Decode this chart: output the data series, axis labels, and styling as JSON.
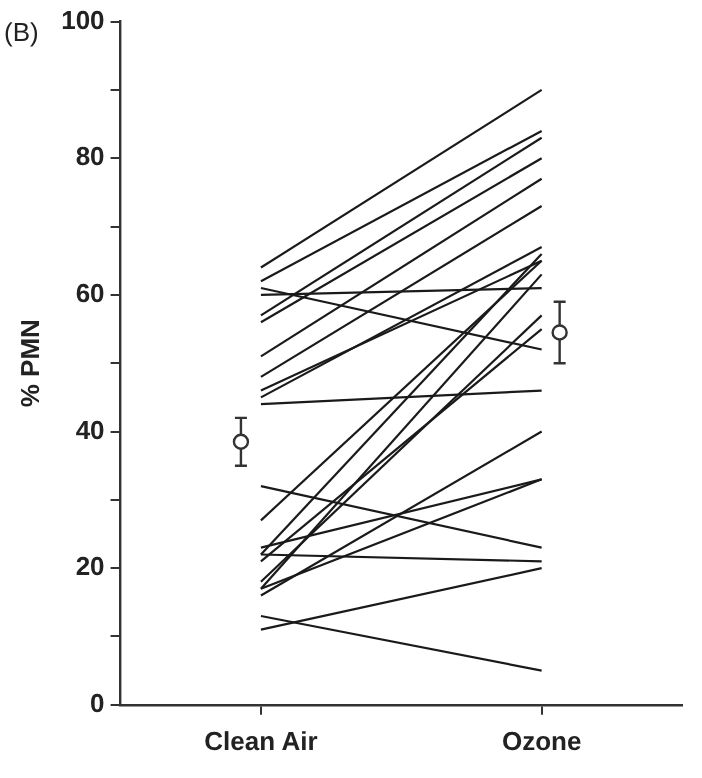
{
  "chart_data": {
    "type": "line",
    "ylabel": "% PMN",
    "annotations": [
      "(B)"
    ],
    "categories": [
      "Clean Air",
      "Ozone"
    ],
    "ylim": [
      0,
      100
    ],
    "yticks": [
      0,
      {
        "value": 10,
        "label": null
      },
      20,
      {
        "value": 30,
        "label": null
      },
      40,
      {
        "value": 50,
        "label": null
      },
      60,
      {
        "value": 70,
        "label": null
      },
      80,
      {
        "value": 90,
        "label": null
      },
      100
    ],
    "grid": false,
    "legend": false,
    "marker": "none",
    "line_style": "solid",
    "series": [
      {
        "color": "#1a1a1a",
        "values": [
          64,
          90
        ]
      },
      {
        "color": "#1a1a1a",
        "values": [
          62,
          84
        ]
      },
      {
        "color": "#1a1a1a",
        "values": [
          61,
          52
        ]
      },
      {
        "color": "#1a1a1a",
        "values": [
          60,
          61
        ]
      },
      {
        "color": "#1a1a1a",
        "values": [
          57,
          83
        ]
      },
      {
        "color": "#1a1a1a",
        "values": [
          56,
          80
        ]
      },
      {
        "color": "#1a1a1a",
        "values": [
          51,
          77
        ]
      },
      {
        "color": "#1a1a1a",
        "values": [
          48,
          73
        ]
      },
      {
        "color": "#1a1a1a",
        "values": [
          46,
          65
        ]
      },
      {
        "color": "#1a1a1a",
        "values": [
          45,
          67
        ]
      },
      {
        "color": "#1a1a1a",
        "values": [
          44,
          46
        ]
      },
      {
        "color": "#1a1a1a",
        "values": [
          32,
          23
        ]
      },
      {
        "color": "#1a1a1a",
        "values": [
          27,
          65
        ]
      },
      {
        "color": "#1a1a1a",
        "values": [
          23,
          33
        ]
      },
      {
        "color": "#1a1a1a",
        "values": [
          22,
          21
        ]
      },
      {
        "color": "#1a1a1a",
        "values": [
          22,
          66
        ]
      },
      {
        "color": "#1a1a1a",
        "values": [
          21,
          55
        ]
      },
      {
        "color": "#1a1a1a",
        "values": [
          18,
          57
        ]
      },
      {
        "color": "#1a1a1a",
        "values": [
          17,
          63
        ]
      },
      {
        "color": "#1a1a1a",
        "values": [
          17,
          33
        ]
      },
      {
        "color": "#1a1a1a",
        "values": [
          16,
          40
        ]
      },
      {
        "color": "#1a1a1a",
        "values": [
          13,
          5
        ]
      },
      {
        "color": "#1a1a1a",
        "values": [
          11,
          20
        ]
      },
      {
        "type": "scatter",
        "marker": "circle",
        "color": "#333333",
        "values": [
          38.5,
          54.5
        ],
        "errors": [
          3.5,
          4.5
        ]
      }
    ]
  }
}
